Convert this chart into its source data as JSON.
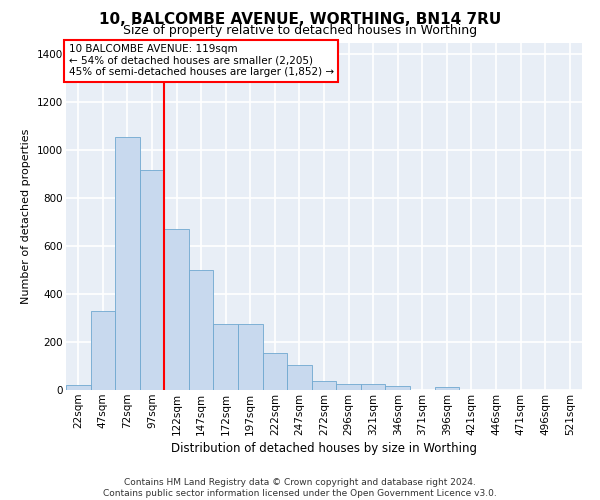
{
  "title": "10, BALCOMBE AVENUE, WORTHING, BN14 7RU",
  "subtitle": "Size of property relative to detached houses in Worthing",
  "xlabel": "Distribution of detached houses by size in Worthing",
  "ylabel": "Number of detached properties",
  "categories": [
    "22sqm",
    "47sqm",
    "72sqm",
    "97sqm",
    "122sqm",
    "147sqm",
    "172sqm",
    "197sqm",
    "222sqm",
    "247sqm",
    "272sqm",
    "296sqm",
    "321sqm",
    "346sqm",
    "371sqm",
    "396sqm",
    "421sqm",
    "446sqm",
    "471sqm",
    "496sqm",
    "521sqm"
  ],
  "values": [
    20,
    330,
    1055,
    920,
    670,
    500,
    275,
    275,
    153,
    103,
    38,
    25,
    25,
    18,
    0,
    12,
    0,
    0,
    0,
    0,
    0
  ],
  "bar_color": "#c8d9ee",
  "bar_edge_color": "#6fa8d0",
  "annotation_text": "10 BALCOMBE AVENUE: 119sqm\n← 54% of detached houses are smaller (2,205)\n45% of semi-detached houses are larger (1,852) →",
  "annotation_box_color": "white",
  "annotation_box_edge_color": "red",
  "vline_color": "red",
  "vline_x_index": 4,
  "ylim": [
    0,
    1450
  ],
  "yticks": [
    0,
    200,
    400,
    600,
    800,
    1000,
    1200,
    1400
  ],
  "background_color": "#e8eef6",
  "grid_color": "white",
  "footer": "Contains HM Land Registry data © Crown copyright and database right 2024.\nContains public sector information licensed under the Open Government Licence v3.0.",
  "title_fontsize": 11,
  "subtitle_fontsize": 9,
  "xlabel_fontsize": 8.5,
  "ylabel_fontsize": 8,
  "tick_fontsize": 7.5,
  "footer_fontsize": 6.5,
  "ann_fontsize": 7.5
}
